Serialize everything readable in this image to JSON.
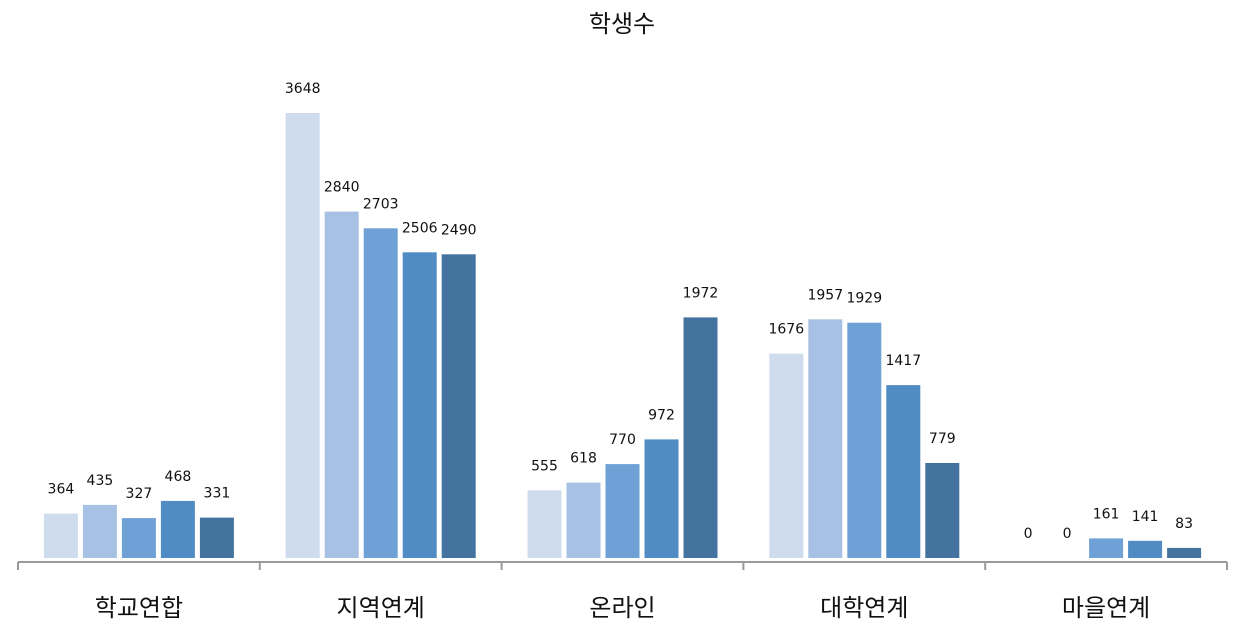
{
  "chart_data": {
    "type": "bar",
    "title": "학생수",
    "xlabel": "",
    "ylabel": "",
    "categories": [
      "학교연합",
      "지역연계",
      "온라인",
      "대학연계",
      "마을연계"
    ],
    "series": [
      {
        "values": [
          364,
          3648,
          555,
          1676,
          0
        ],
        "color": "#cfdcee"
      },
      {
        "values": [
          435,
          2840,
          618,
          1957,
          0
        ],
        "color": "#a7c1e4"
      },
      {
        "values": [
          327,
          2703,
          770,
          1929,
          161
        ],
        "color": "#6fa1d6"
      },
      {
        "values": [
          468,
          2506,
          972,
          1417,
          141
        ],
        "color": "#508bc3"
      },
      {
        "values": [
          331,
          2490,
          1972,
          779,
          83
        ],
        "color": "#44739f"
      }
    ],
    "ylim": [
      0,
      3648
    ],
    "grid": false,
    "legend": "none"
  }
}
